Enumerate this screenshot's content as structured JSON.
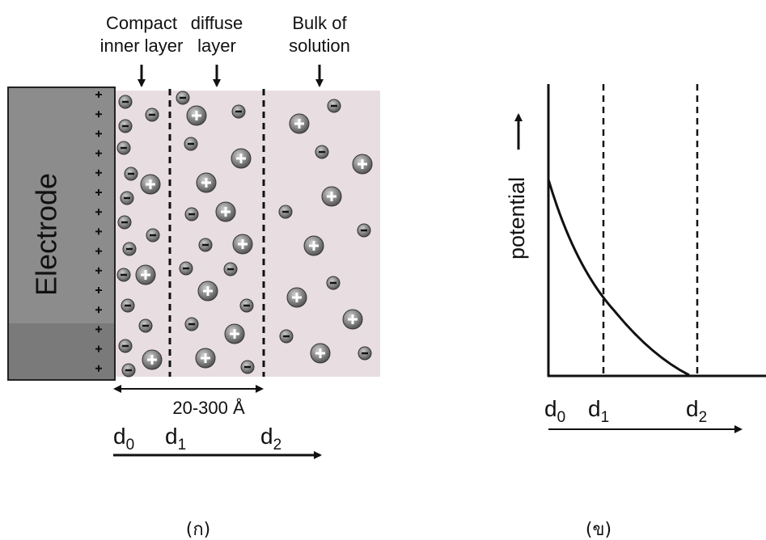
{
  "left_panel": {
    "layer_labels": [
      {
        "lines": [
          "Compact",
          "inner layer"
        ]
      },
      {
        "lines": [
          "diffuse",
          "layer"
        ]
      },
      {
        "lines": [
          "Bulk of",
          "solution"
        ]
      }
    ],
    "electrode_label": "Electrode",
    "thickness_label": "20-300 Å",
    "distance_labels": [
      {
        "main": "d",
        "sub": "0"
      },
      {
        "main": "d",
        "sub": "1"
      },
      {
        "main": "d",
        "sub": "2"
      }
    ],
    "caption": "(ก)"
  },
  "right_panel": {
    "y_axis_label": "potential",
    "distance_labels": [
      {
        "main": "d",
        "sub": "0"
      },
      {
        "main": "d",
        "sub": "1"
      },
      {
        "main": "d",
        "sub": "2"
      }
    ],
    "caption": "(ข)"
  }
}
